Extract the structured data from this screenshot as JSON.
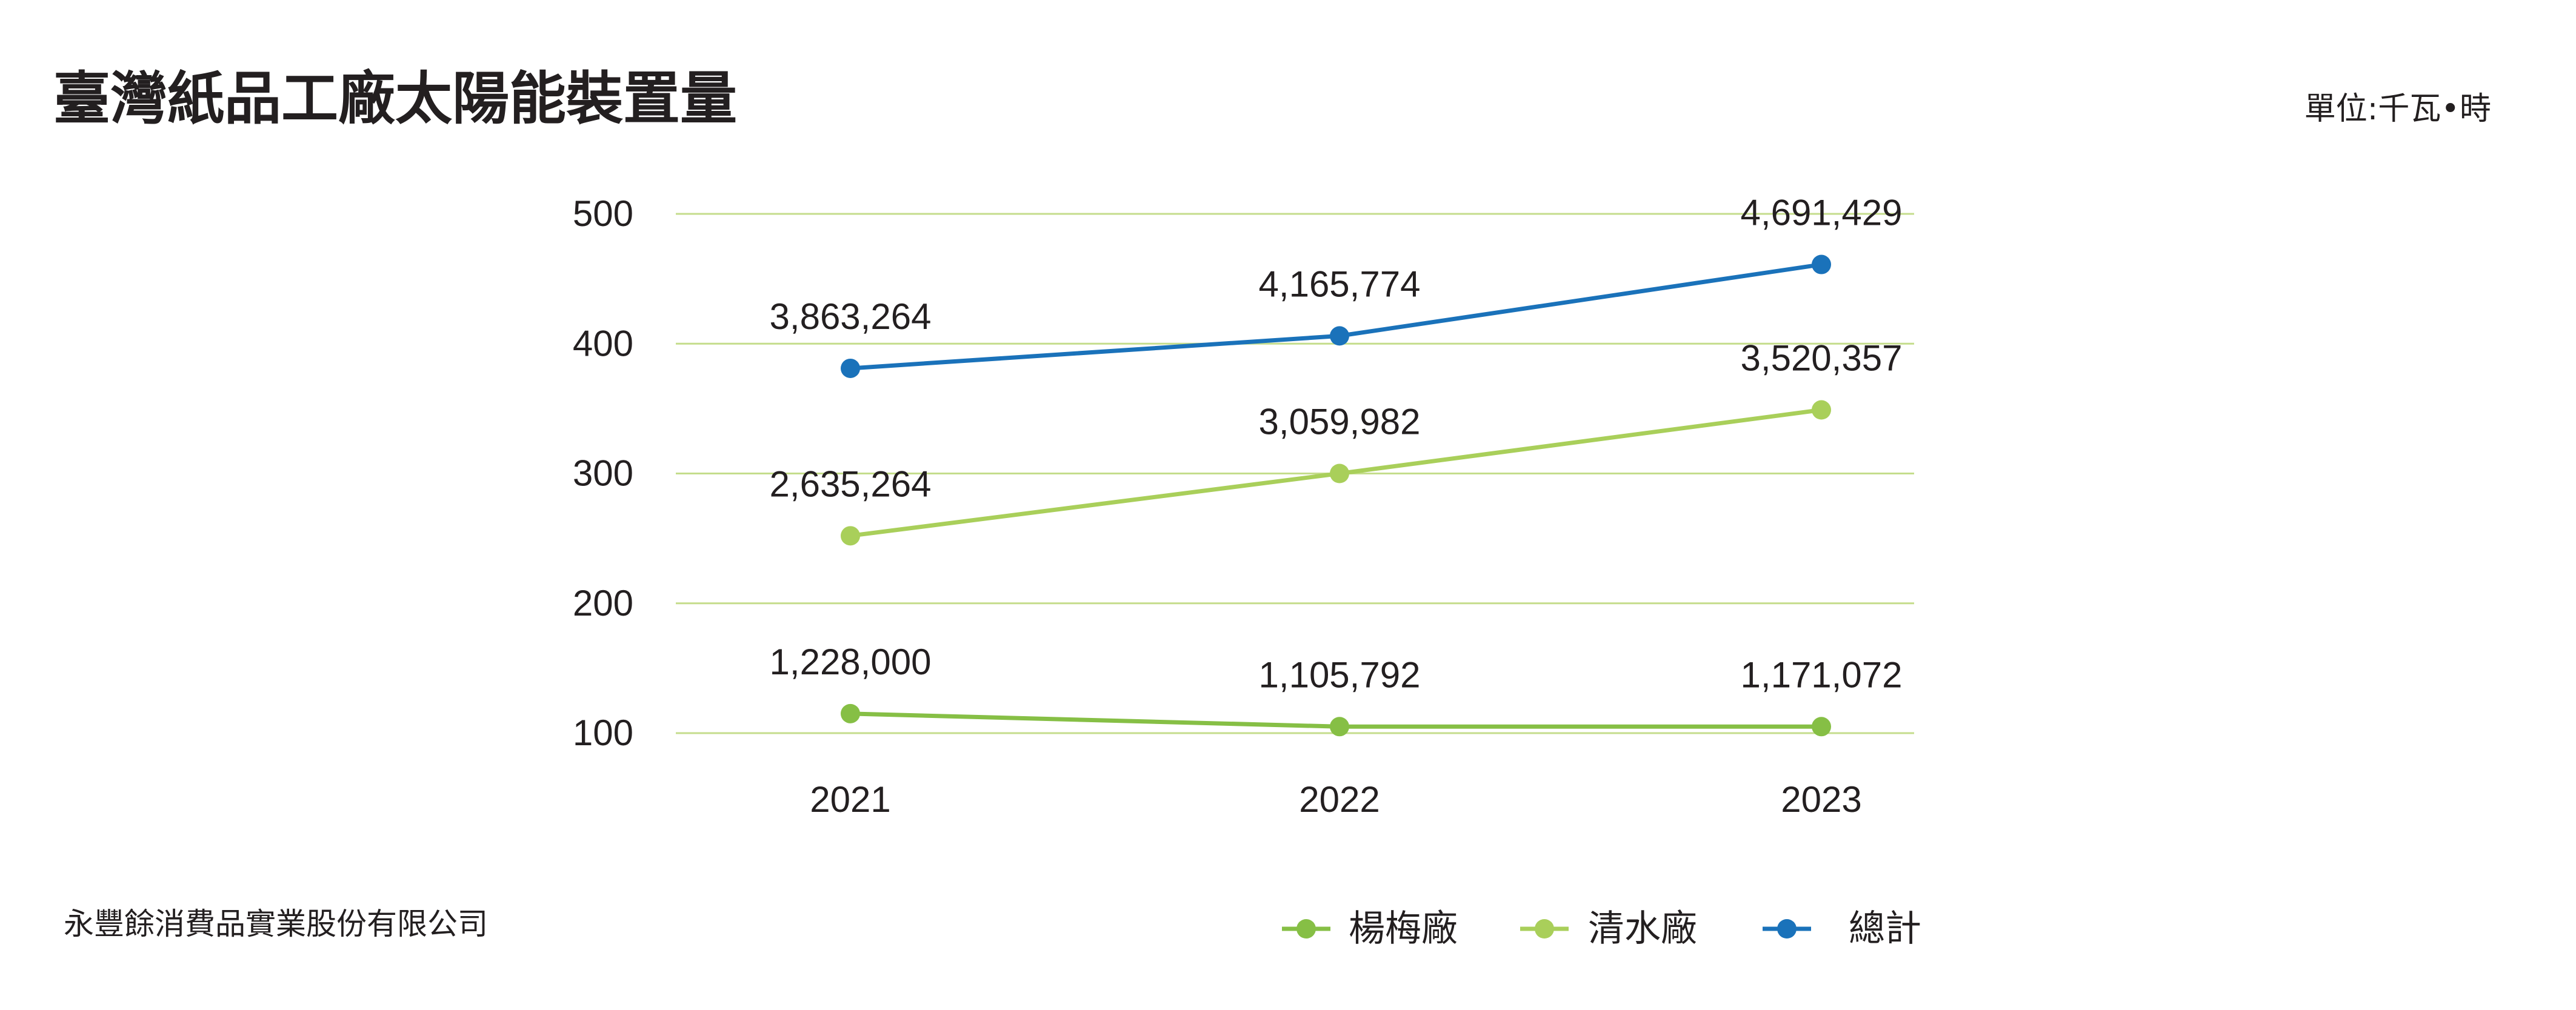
{
  "header": {
    "title": "臺灣紙品工廠太陽能裝置量",
    "unit": "單位:千瓦•時"
  },
  "footer": {
    "company": "永豐餘消費品實業股份有限公司"
  },
  "colors": {
    "gridline": "#c5dd8c",
    "yangmei": "#86bf45",
    "qingshui": "#a9cf5a",
    "total": "#1a72ba"
  },
  "chart_data": {
    "type": "line",
    "x": [
      "2021",
      "2022",
      "2023"
    ],
    "y_ticks": [
      100,
      200,
      300,
      400,
      500
    ],
    "ylim": [
      100,
      500
    ],
    "grid": true,
    "legend_position": "bottom-right",
    "series": [
      {
        "name": "楊梅廠",
        "color": "#86bf45",
        "values": [
          115,
          105,
          105
        ],
        "labels": [
          "1,228,000",
          "1,105,792",
          "1,171,072"
        ]
      },
      {
        "name": "清水廠",
        "color": "#a9cf5a",
        "values": [
          252,
          300,
          349
        ],
        "labels": [
          "2,635,264",
          "3,059,982",
          "3,520,357"
        ]
      },
      {
        "name": "總計",
        "color": "#1a72ba",
        "values": [
          381,
          406,
          461
        ],
        "labels": [
          "3,863,264",
          "4,165,774",
          "4,691,429"
        ]
      }
    ]
  }
}
